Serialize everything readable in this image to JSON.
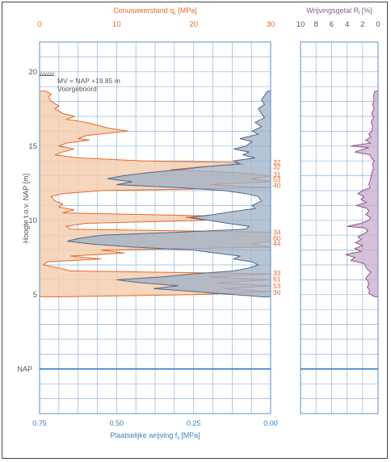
{
  "chart_data": [
    {
      "type": "area",
      "top_axis": {
        "title_main": "Conusweerstand q",
        "title_sub": "c",
        "title_unit": "[MPa]",
        "range": [
          0,
          30
        ],
        "ticks": [
          "0",
          "10",
          "20",
          "30"
        ]
      },
      "bottom_axis": {
        "title_main": "Plaatselijke wrijving f",
        "title_sub": "s",
        "title_unit": "[MPa]",
        "range": [
          0.75,
          0
        ],
        "ticks": [
          "0.75",
          "0.50",
          "0.25",
          "0.00"
        ]
      },
      "y_axis": {
        "title": "Hoogte t.o.v. NAP [m]",
        "range": [
          -3,
          22
        ],
        "ticks": [
          "5",
          "10",
          "15",
          "20"
        ],
        "nap_label": "NAP"
      },
      "annotation": {
        "line1": "MV = NAP +19.85 m",
        "line2": "Voorgeboord",
        "level": 19.85
      },
      "grid": true,
      "cone_resistance": {
        "color": "#e8672a",
        "fill": "#f4cfb0",
        "points": [
          [
            18.7,
            0.8
          ],
          [
            18.5,
            1.5
          ],
          [
            18.3,
            1.2
          ],
          [
            18.0,
            1.5
          ],
          [
            17.7,
            2.5
          ],
          [
            17.5,
            2.0
          ],
          [
            17.2,
            3.0
          ],
          [
            17.0,
            4.5
          ],
          [
            16.8,
            3.5
          ],
          [
            16.6,
            6.0
          ],
          [
            16.4,
            7.5
          ],
          [
            16.2,
            9.0
          ],
          [
            16.0,
            11.5
          ],
          [
            15.9,
            9.5
          ],
          [
            15.7,
            6.0
          ],
          [
            15.5,
            5.0
          ],
          [
            15.4,
            6.5
          ],
          [
            15.2,
            3.5
          ],
          [
            15.0,
            2.5
          ],
          [
            14.8,
            4.5
          ],
          [
            14.6,
            3.0
          ],
          [
            14.4,
            2.0
          ],
          [
            14.2,
            5.0
          ],
          [
            14.0,
            13.5
          ],
          [
            13.9,
            25.0
          ],
          [
            13.8,
            26.5
          ],
          [
            13.6,
            21.0
          ],
          [
            13.4,
            17.0
          ],
          [
            13.2,
            26.0
          ],
          [
            13.0,
            30.0
          ],
          [
            12.8,
            27.5
          ],
          [
            12.6,
            30.0
          ],
          [
            12.4,
            22.0
          ],
          [
            12.2,
            30.0
          ],
          [
            12.0,
            8.0
          ],
          [
            11.8,
            3.0
          ],
          [
            11.6,
            1.5
          ],
          [
            11.3,
            2.0
          ],
          [
            11.1,
            3.0
          ],
          [
            10.9,
            2.5
          ],
          [
            10.7,
            4.5
          ],
          [
            10.5,
            3.0
          ],
          [
            10.3,
            22.0
          ],
          [
            10.2,
            19.0
          ],
          [
            10.0,
            21.5
          ],
          [
            9.8,
            6.0
          ],
          [
            9.6,
            3.5
          ],
          [
            9.4,
            4.0
          ],
          [
            9.2,
            30.0
          ],
          [
            9.0,
            30.0
          ],
          [
            8.8,
            30.0
          ],
          [
            8.6,
            30.0
          ],
          [
            8.4,
            27.5
          ],
          [
            8.2,
            30.0
          ],
          [
            8.0,
            8.0
          ],
          [
            7.8,
            11.0
          ],
          [
            7.6,
            4.0
          ],
          [
            7.4,
            8.0
          ],
          [
            7.2,
            1.0
          ],
          [
            7.0,
            0.5
          ],
          [
            6.8,
            2.5
          ],
          [
            6.6,
            4.0
          ],
          [
            6.4,
            30.0
          ],
          [
            6.2,
            22.0
          ],
          [
            6.0,
            30.0
          ],
          [
            5.8,
            23.0
          ],
          [
            5.6,
            30.0
          ],
          [
            5.4,
            24.0
          ],
          [
            5.2,
            30.0
          ],
          [
            5.0,
            20.0
          ],
          [
            4.85,
            2.0
          ]
        ],
        "clip_labels": [
          "32",
          "32",
          "31",
          "53",
          "40",
          "34",
          "60",
          "44",
          "33",
          "61",
          "53",
          "36"
        ]
      },
      "local_friction": {
        "color": "#51678c",
        "fill": "#9db0c5",
        "points": [
          [
            18.7,
            0.01
          ],
          [
            18.4,
            0.02
          ],
          [
            18.1,
            0.03
          ],
          [
            17.8,
            0.02
          ],
          [
            17.5,
            0.04
          ],
          [
            17.2,
            0.03
          ],
          [
            16.9,
            0.02
          ],
          [
            16.6,
            0.05
          ],
          [
            16.3,
            0.03
          ],
          [
            16.0,
            0.06
          ],
          [
            15.8,
            0.04
          ],
          [
            15.5,
            0.1
          ],
          [
            15.3,
            0.06
          ],
          [
            15.0,
            0.08
          ],
          [
            14.8,
            0.12
          ],
          [
            14.6,
            0.07
          ],
          [
            14.4,
            0.09
          ],
          [
            14.2,
            0.05
          ],
          [
            14.0,
            0.12
          ],
          [
            13.8,
            0.1
          ],
          [
            13.6,
            0.22
          ],
          [
            13.4,
            0.3
          ],
          [
            13.2,
            0.4
          ],
          [
            13.0,
            0.48
          ],
          [
            12.8,
            0.53
          ],
          [
            12.6,
            0.45
          ],
          [
            12.4,
            0.5
          ],
          [
            12.2,
            0.3
          ],
          [
            12.0,
            0.15
          ],
          [
            11.8,
            0.08
          ],
          [
            11.6,
            0.04
          ],
          [
            11.3,
            0.03
          ],
          [
            11.0,
            0.06
          ],
          [
            10.8,
            0.05
          ],
          [
            10.6,
            0.12
          ],
          [
            10.4,
            0.18
          ],
          [
            10.2,
            0.26
          ],
          [
            10.0,
            0.2
          ],
          [
            9.8,
            0.14
          ],
          [
            9.6,
            0.07
          ],
          [
            9.4,
            0.08
          ],
          [
            9.2,
            0.3
          ],
          [
            9.0,
            0.55
          ],
          [
            8.8,
            0.62
          ],
          [
            8.6,
            0.66
          ],
          [
            8.4,
            0.58
          ],
          [
            8.2,
            0.45
          ],
          [
            8.0,
            0.25
          ],
          [
            7.8,
            0.18
          ],
          [
            7.6,
            0.1
          ],
          [
            7.4,
            0.12
          ],
          [
            7.2,
            0.06
          ],
          [
            7.0,
            0.04
          ],
          [
            6.8,
            0.07
          ],
          [
            6.6,
            0.12
          ],
          [
            6.4,
            0.25
          ],
          [
            6.2,
            0.35
          ],
          [
            6.0,
            0.5
          ],
          [
            5.8,
            0.42
          ],
          [
            5.6,
            0.3
          ],
          [
            5.4,
            0.38
          ],
          [
            5.2,
            0.24
          ],
          [
            5.0,
            0.12
          ],
          [
            4.85,
            0.02
          ]
        ]
      }
    },
    {
      "type": "line",
      "top_axis": {
        "title_main": "Wrijvingsgetal R",
        "title_sub": "f",
        "title_unit": "[%]",
        "range": [
          10,
          0
        ],
        "ticks": [
          "10",
          "8",
          "6",
          "4",
          "2",
          "0"
        ]
      },
      "y_range": [
        -3,
        22
      ],
      "grid": true,
      "friction_ratio": {
        "color": "#8a5a8f",
        "fill": "#c4a7c8",
        "points": [
          [
            18.7,
            0.4
          ],
          [
            18.4,
            0.6
          ],
          [
            18.1,
            0.5
          ],
          [
            17.8,
            0.7
          ],
          [
            17.5,
            0.5
          ],
          [
            17.2,
            0.8
          ],
          [
            16.9,
            0.6
          ],
          [
            16.6,
            0.9
          ],
          [
            16.3,
            0.7
          ],
          [
            16.0,
            0.8
          ],
          [
            15.8,
            1.2
          ],
          [
            15.6,
            0.9
          ],
          [
            15.4,
            1.6
          ],
          [
            15.2,
            1.0
          ],
          [
            15.0,
            3.5
          ],
          [
            14.9,
            1.2
          ],
          [
            14.6,
            3.0
          ],
          [
            14.4,
            1.0
          ],
          [
            14.2,
            0.9
          ],
          [
            14.0,
            0.5
          ],
          [
            13.8,
            0.7
          ],
          [
            13.5,
            0.6
          ],
          [
            13.2,
            0.8
          ],
          [
            13.0,
            0.9
          ],
          [
            12.7,
            1.0
          ],
          [
            12.4,
            1.2
          ],
          [
            12.2,
            1.0
          ],
          [
            12.0,
            2.0
          ],
          [
            11.8,
            2.6
          ],
          [
            11.6,
            1.8
          ],
          [
            11.4,
            2.2
          ],
          [
            11.2,
            1.5
          ],
          [
            11.0,
            2.8
          ],
          [
            10.8,
            1.4
          ],
          [
            10.6,
            1.2
          ],
          [
            10.4,
            1.6
          ],
          [
            10.2,
            1.0
          ],
          [
            10.0,
            1.2
          ],
          [
            9.8,
            2.2
          ],
          [
            9.6,
            4.0
          ],
          [
            9.5,
            1.8
          ],
          [
            9.3,
            1.3
          ],
          [
            9.1,
            1.8
          ],
          [
            8.9,
            2.6
          ],
          [
            8.7,
            2.2
          ],
          [
            8.5,
            2.9
          ],
          [
            8.3,
            2.0
          ],
          [
            8.1,
            3.0
          ],
          [
            7.9,
            2.2
          ],
          [
            7.7,
            4.2
          ],
          [
            7.5,
            3.0
          ],
          [
            7.3,
            3.5
          ],
          [
            7.1,
            1.8
          ],
          [
            6.9,
            1.6
          ],
          [
            6.7,
            1.4
          ],
          [
            6.5,
            0.9
          ],
          [
            6.3,
            1.3
          ],
          [
            6.1,
            1.6
          ],
          [
            5.9,
            1.3
          ],
          [
            5.7,
            1.2
          ],
          [
            5.5,
            1.4
          ],
          [
            5.3,
            1.1
          ],
          [
            5.1,
            1.2
          ],
          [
            4.9,
            0.6
          ],
          [
            4.85,
            0.3
          ]
        ]
      }
    }
  ]
}
